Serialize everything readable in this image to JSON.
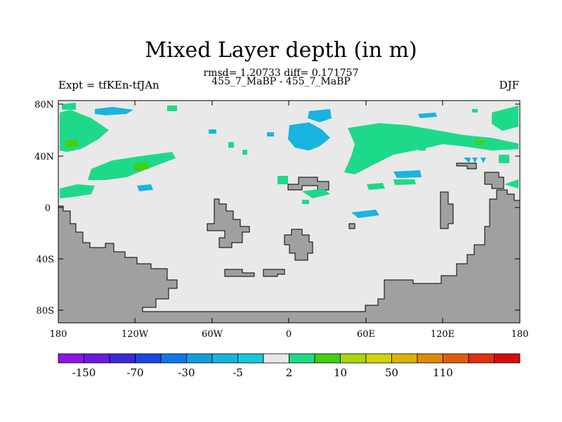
{
  "title": "Mixed Layer depth (in m)",
  "stats_line": "rmsd= 1.20733 diff= 0.171757",
  "experiments_line": "455_7_MaBP - 455_7_MaBP",
  "left_label": "Expt = tfKEn-tfJAn",
  "season": "DJF",
  "map": {
    "lat_labels": [
      "80N",
      "40N",
      "0",
      "40S",
      "80S"
    ],
    "lon_labels": [
      "180",
      "120W",
      "60W",
      "0",
      "60E",
      "120E",
      "180"
    ],
    "land_color": "#a0a0a0",
    "ocean_color": "#e9e9e9"
  },
  "colorbar": {
    "colors": [
      "#8f14e8",
      "#6a1ae0",
      "#3a2ad8",
      "#1a45e0",
      "#0f78e8",
      "#139ede",
      "#19b4e0",
      "#19c8dc",
      "#e9e9e9",
      "#1fd98a",
      "#44cf10",
      "#a8d80d",
      "#d4d40c",
      "#d9b40c",
      "#df8a0c",
      "#e25e0c",
      "#e0300e",
      "#d80c0c"
    ],
    "labels": [
      "-150",
      "-70",
      "-30",
      "-5",
      "2",
      "10",
      "50",
      "110"
    ]
  }
}
